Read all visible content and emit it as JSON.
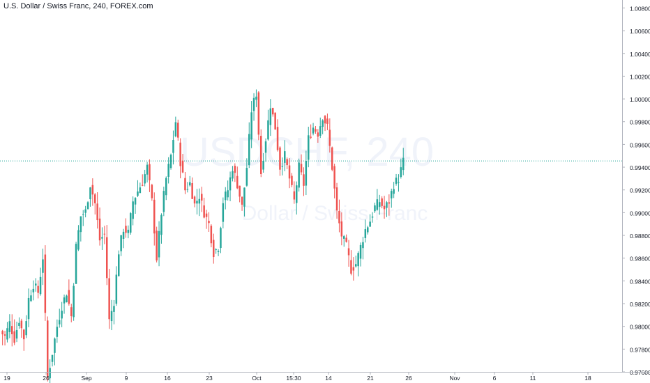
{
  "chart_data": {
    "type": "candlestick",
    "title": "U.S. Dollar / Swiss Franc, 240, FOREX.com",
    "watermark": {
      "symbol": "USDCHF, 240",
      "description": "Dollar / Swiss Franc"
    },
    "y_ticks": [
      "1.00800",
      "1.00600",
      "1.00400",
      "1.00200",
      "1.00000",
      "0.99800",
      "0.99600",
      "0.99400",
      "0.99200",
      "0.99000",
      "0.98800",
      "0.98600",
      "0.98400",
      "0.98200",
      "0.98000",
      "0.97800",
      "0.97600"
    ],
    "ylim": [
      0.976,
      1.0087
    ],
    "x_ticks": [
      "19",
      "26",
      "Sep",
      "9",
      "16",
      "23",
      "Oct",
      "15:30",
      "14",
      "21",
      "26",
      "Nov",
      "6",
      "11",
      "18"
    ],
    "current_price": 0.99455,
    "legend": "none",
    "grid": false,
    "colors": {
      "up": "#26a69a",
      "down": "#ef5350",
      "price_line": "#26a69a",
      "axis_text": "#131722",
      "axis_line": "#b2b5be",
      "watermark": "#f0f3fa"
    },
    "close_path": [
      [
        0,
        0.9796
      ],
      [
        2,
        0.9791
      ],
      [
        4,
        0.9803
      ],
      [
        6,
        0.9789
      ],
      [
        8,
        0.9806
      ],
      [
        10,
        0.979
      ],
      [
        12,
        0.9824
      ],
      [
        14,
        0.9837
      ],
      [
        16,
        0.983
      ],
      [
        18,
        0.9861
      ],
      [
        20,
        0.9755
      ],
      [
        22,
        0.9777
      ],
      [
        24,
        0.98
      ],
      [
        26,
        0.9818
      ],
      [
        28,
        0.983
      ],
      [
        30,
        0.9809
      ],
      [
        32,
        0.987
      ],
      [
        34,
        0.9897
      ],
      [
        36,
        0.9901
      ],
      [
        38,
        0.9925
      ],
      [
        40,
        0.9908
      ],
      [
        42,
        0.9876
      ],
      [
        44,
        0.9881
      ],
      [
        46,
        0.9805
      ],
      [
        48,
        0.9822
      ],
      [
        50,
        0.9866
      ],
      [
        52,
        0.9886
      ],
      [
        54,
        0.9882
      ],
      [
        56,
        0.991
      ],
      [
        58,
        0.9919
      ],
      [
        60,
        0.9927
      ],
      [
        62,
        0.994
      ],
      [
        64,
        0.991
      ],
      [
        66,
        0.986
      ],
      [
        68,
        0.99
      ],
      [
        70,
        0.993
      ],
      [
        72,
        0.995
      ],
      [
        74,
        0.998
      ],
      [
        76,
        0.9945
      ],
      [
        78,
        0.992
      ],
      [
        80,
        0.9926
      ],
      [
        82,
        0.9907
      ],
      [
        84,
        0.9915
      ],
      [
        86,
        0.99
      ],
      [
        88,
        0.989
      ],
      [
        90,
        0.9865
      ],
      [
        92,
        0.987
      ],
      [
        94,
        0.991
      ],
      [
        96,
        0.992
      ],
      [
        98,
        0.994
      ],
      [
        100,
        0.9925
      ],
      [
        102,
        0.9905
      ],
      [
        104,
        0.994
      ],
      [
        106,
        0.999
      ],
      [
        108,
        1.0005
      ],
      [
        110,
        0.9935
      ],
      [
        112,
        0.9965
      ],
      [
        114,
        0.9995
      ],
      [
        116,
        0.9975
      ],
      [
        118,
        0.994
      ],
      [
        120,
        0.995
      ],
      [
        122,
        0.993
      ],
      [
        124,
        0.991
      ],
      [
        126,
        0.994
      ],
      [
        128,
        0.9925
      ],
      [
        130,
        0.9965
      ],
      [
        132,
        0.9975
      ],
      [
        134,
        0.997
      ],
      [
        136,
        0.9985
      ],
      [
        138,
        0.9975
      ],
      [
        140,
        0.994
      ],
      [
        142,
        0.99
      ],
      [
        144,
        0.988
      ],
      [
        146,
        0.987
      ],
      [
        148,
        0.985
      ],
      [
        150,
        0.9855
      ],
      [
        152,
        0.987
      ],
      [
        154,
        0.9885
      ],
      [
        156,
        0.9893
      ],
      [
        158,
        0.9905
      ],
      [
        160,
        0.991
      ],
      [
        162,
        0.9903
      ],
      [
        164,
        0.991
      ],
      [
        166,
        0.9925
      ],
      [
        168,
        0.993
      ],
      [
        170,
        0.9945
      ]
    ]
  }
}
